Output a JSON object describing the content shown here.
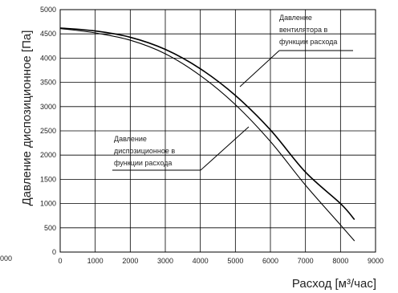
{
  "chart_data": {
    "type": "line",
    "xlabel": "Расход [м³/час]",
    "ylabel": "Давление диспозиционное [Па]",
    "xlim": [
      0,
      9000
    ],
    "ylim": [
      0,
      5000
    ],
    "x_ticks": [
      "0",
      "1000",
      "2000",
      "3000",
      "4000",
      "5000",
      "6000",
      "7000",
      "8000",
      "9000"
    ],
    "y_ticks": [
      "0",
      "500",
      "1000",
      "1500",
      "2000",
      "2500",
      "3000",
      "3500",
      "4000",
      "4500",
      "5000"
    ],
    "left_edge_label": "000",
    "grid": true,
    "series": [
      {
        "values": [
          {
            "x": 0,
            "y": 4620
          },
          {
            "x": 1000,
            "y": 4560
          },
          {
            "x": 2000,
            "y": 4430
          },
          {
            "x": 3000,
            "y": 4180
          },
          {
            "x": 4000,
            "y": 3780
          },
          {
            "x": 5000,
            "y": 3230
          },
          {
            "x": 6000,
            "y": 2520
          },
          {
            "x": 7000,
            "y": 1650
          },
          {
            "x": 8000,
            "y": 1000
          },
          {
            "x": 8400,
            "y": 670
          }
        ],
        "color": "#000000"
      },
      {
        "values": [
          {
            "x": 0,
            "y": 4610
          },
          {
            "x": 1000,
            "y": 4520
          },
          {
            "x": 2000,
            "y": 4370
          },
          {
            "x": 3000,
            "y": 4090
          },
          {
            "x": 4000,
            "y": 3640
          },
          {
            "x": 5000,
            "y": 3040
          },
          {
            "x": 6000,
            "y": 2280
          },
          {
            "x": 7000,
            "y": 1380
          },
          {
            "x": 8000,
            "y": 560
          },
          {
            "x": 8400,
            "y": 230
          }
        ],
        "color": "#000000"
      }
    ],
    "annotations": [
      {
        "lines": [
          "Давление",
          "вентилятора в",
          "функции расхода"
        ]
      },
      {
        "lines": [
          "Давление",
          "диспозиционное в",
          "функции расхода"
        ]
      }
    ]
  }
}
